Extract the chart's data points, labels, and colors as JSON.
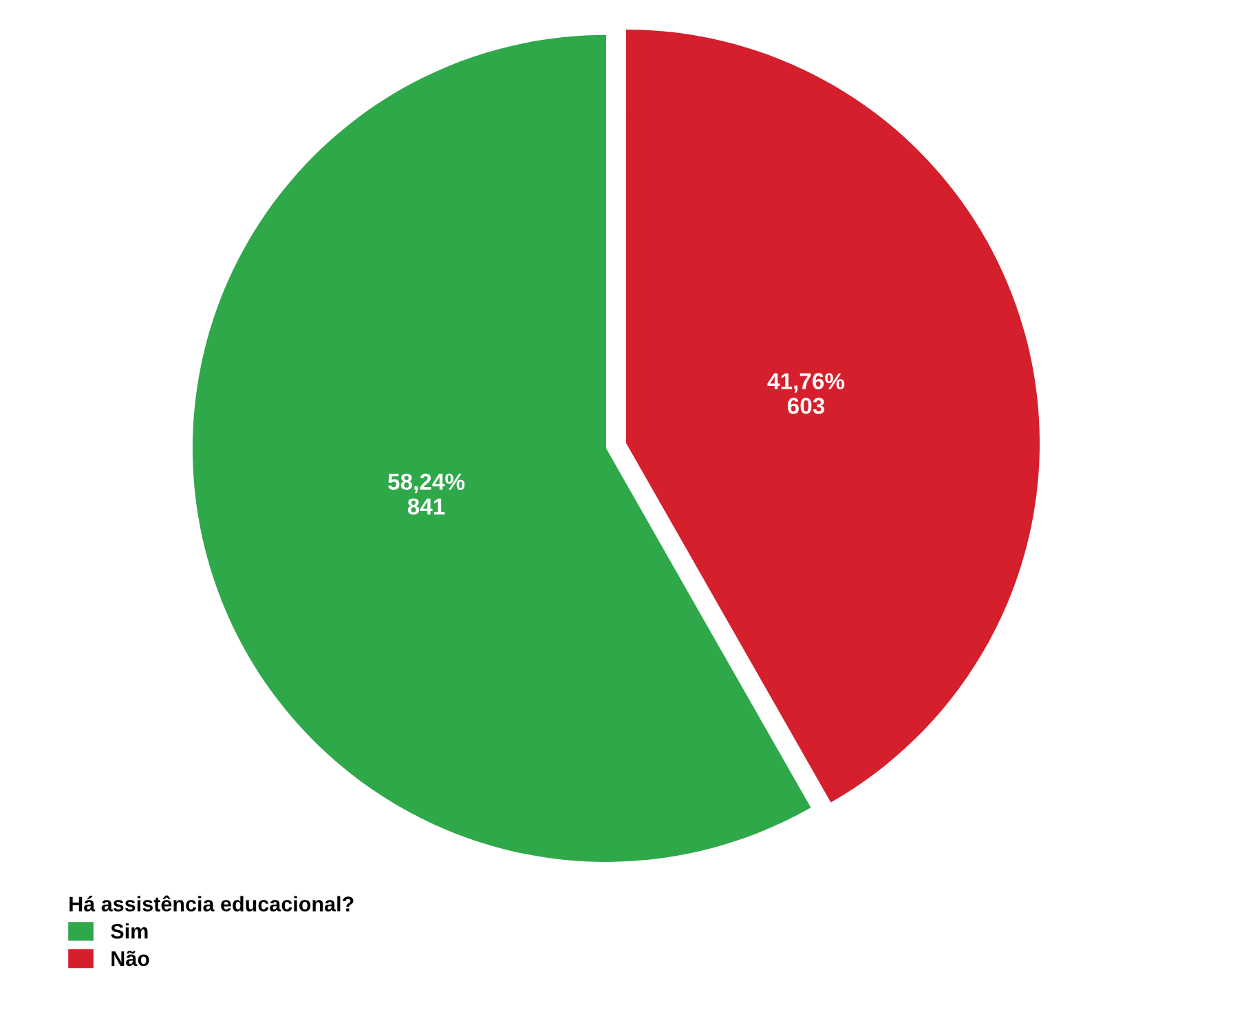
{
  "chart_data": {
    "type": "pie",
    "categories": [
      "Sim",
      "Não"
    ],
    "values": [
      841,
      603
    ],
    "colors": [
      "#2fa84a",
      "#d61f2c"
    ],
    "value_labels": [
      "58,24%\n841",
      "41,76%\n603"
    ],
    "legend_title": "Há assistência educacional?",
    "legend": "bottom left"
  }
}
